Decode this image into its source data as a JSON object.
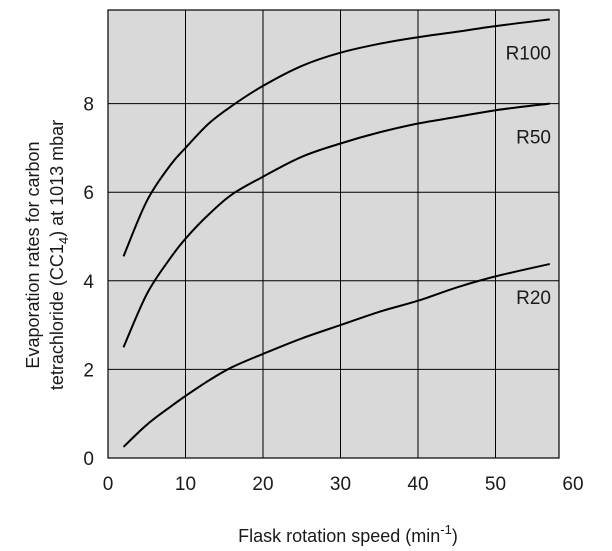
{
  "chart_data": {
    "type": "line",
    "xlabel": {
      "main": "Flask rotation speed (min",
      "sup": "-1",
      "end": ")"
    },
    "ylabel": {
      "line1": "Evaporation rates for carbon",
      "line2_pre": "tetrachloride (CC1",
      "line2_sub": "4",
      "line2_post": ") at 1013 mbar"
    },
    "xlim": [
      0,
      57
    ],
    "ylim": [
      -0.3,
      10.0
    ],
    "x_ticks": [
      0,
      10,
      20,
      30,
      40,
      50,
      60
    ],
    "y_ticks": [
      0,
      2,
      4,
      6,
      8
    ],
    "grid": true,
    "plot_background": "#d9d9d9",
    "line_color": "#000000",
    "series": [
      {
        "name": "R100",
        "x": [
          2,
          5,
          8,
          10,
          13,
          16,
          20,
          25,
          30,
          35,
          40,
          45,
          50,
          57
        ],
        "y": [
          4.55,
          5.8,
          6.6,
          7.0,
          7.55,
          7.95,
          8.4,
          8.85,
          9.15,
          9.35,
          9.5,
          9.62,
          9.75,
          9.9
        ]
      },
      {
        "name": "R50",
        "x": [
          2,
          5,
          8,
          10,
          13,
          16,
          20,
          25,
          30,
          35,
          40,
          45,
          50,
          57
        ],
        "y": [
          2.5,
          3.7,
          4.5,
          4.95,
          5.5,
          5.95,
          6.35,
          6.8,
          7.1,
          7.35,
          7.55,
          7.7,
          7.85,
          8.0
        ]
      },
      {
        "name": "R20",
        "x": [
          2,
          5,
          8,
          10,
          13,
          16,
          20,
          25,
          30,
          35,
          40,
          45,
          50,
          57
        ],
        "y": [
          0.25,
          0.75,
          1.15,
          1.4,
          1.75,
          2.05,
          2.35,
          2.7,
          3.0,
          3.3,
          3.55,
          3.85,
          4.1,
          4.38
        ]
      }
    ]
  }
}
